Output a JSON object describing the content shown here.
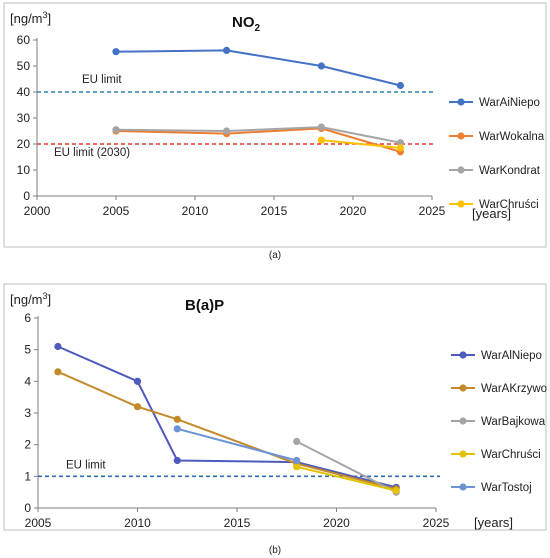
{
  "chart_data": [
    {
      "type": "line",
      "title_main": "NO",
      "title_sub": "2",
      "unit_prefix": "[ng/m",
      "unit_sup": "3",
      "unit_suffix": "]",
      "xlabel": "[years]",
      "xlim": [
        2000,
        2025
      ],
      "ylim": [
        0,
        60
      ],
      "xticks": [
        "2000",
        "2005",
        "2010",
        "2015",
        "2020",
        "2025"
      ],
      "yticks": [
        "0",
        "10",
        "20",
        "30",
        "40",
        "50",
        "60"
      ],
      "caption": "(a)",
      "grid": false,
      "legend_position": "right",
      "limits": [
        {
          "label": "EU limit",
          "value": 40,
          "color": "#2b83b4"
        },
        {
          "label": "EU limit (2030)",
          "value": 20,
          "color": "#e8302a"
        }
      ],
      "series": [
        {
          "name": "WarAiNiepo",
          "color": "#4472c4",
          "x": [
            2005,
            2012,
            2018,
            2023
          ],
          "y": [
            55.5,
            56,
            50,
            42.5
          ]
        },
        {
          "name": "WarWokalna",
          "color": "#ed7d31",
          "x": [
            2005,
            2012,
            2018,
            2023
          ],
          "y": [
            25,
            24,
            26,
            17
          ]
        },
        {
          "name": "WarKondrat",
          "color": "#a5a5a5",
          "x": [
            2005,
            2012,
            2018,
            2023
          ],
          "y": [
            25.5,
            25,
            26.5,
            20.5
          ]
        },
        {
          "name": "WarChruści",
          "color": "#ffc000",
          "x": [
            2018,
            2023
          ],
          "y": [
            21.5,
            18.5
          ]
        }
      ]
    },
    {
      "type": "line",
      "title_main": "B(a)P",
      "title_sub": "",
      "unit_prefix": "[ng/m",
      "unit_sup": "3",
      "unit_suffix": "]",
      "xlabel": "[years]",
      "xlim": [
        2005,
        2025
      ],
      "ylim": [
        0,
        6
      ],
      "xticks": [
        "2005",
        "2010",
        "2015",
        "2020",
        "2025"
      ],
      "yticks": [
        "0",
        "1",
        "2",
        "3",
        "4",
        "5",
        "6"
      ],
      "caption": "(b)",
      "grid": false,
      "legend_position": "right",
      "limits": [
        {
          "label": "EU limit",
          "value": 1,
          "color": "#2f6db4"
        }
      ],
      "series": [
        {
          "name": "WarAlNiepo",
          "color": "#4d5bbd",
          "x": [
            2006,
            2010,
            2012,
            2018,
            2023
          ],
          "y": [
            5.1,
            4.0,
            1.5,
            1.45,
            0.65
          ]
        },
        {
          "name": "WarAKrzywo",
          "color": "#c48a2a",
          "x": [
            2006,
            2010,
            2012,
            2018,
            2023
          ],
          "y": [
            4.3,
            3.2,
            2.8,
            1.4,
            0.6
          ]
        },
        {
          "name": "WarBajkowa",
          "color": "#a5a5a5",
          "x": [
            2018,
            2023
          ],
          "y": [
            2.1,
            0.5
          ]
        },
        {
          "name": "WarChruści",
          "color": "#e3c200",
          "x": [
            2018,
            2023
          ],
          "y": [
            1.3,
            0.55
          ]
        },
        {
          "name": "WarTostoj",
          "color": "#6b93d6",
          "x": [
            2012,
            2018
          ],
          "y": [
            2.5,
            1.5
          ]
        }
      ]
    }
  ]
}
